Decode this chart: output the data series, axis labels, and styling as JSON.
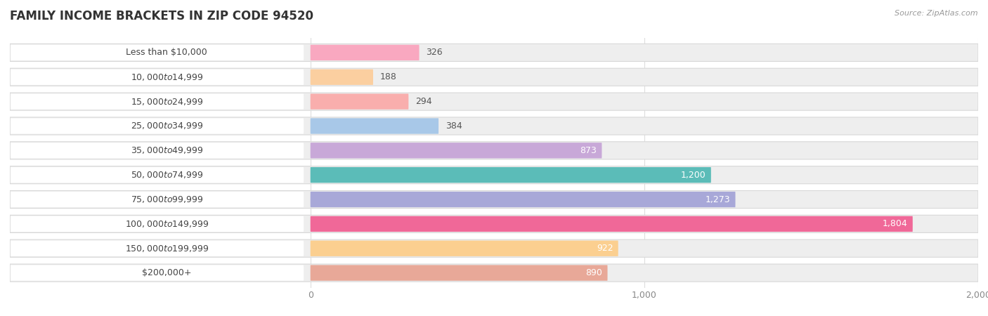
{
  "title": "FAMILY INCOME BRACKETS IN ZIP CODE 94520",
  "source": "Source: ZipAtlas.com",
  "categories": [
    "Less than $10,000",
    "$10,000 to $14,999",
    "$15,000 to $24,999",
    "$25,000 to $34,999",
    "$35,000 to $49,999",
    "$50,000 to $74,999",
    "$75,000 to $99,999",
    "$100,000 to $149,999",
    "$150,000 to $199,999",
    "$200,000+"
  ],
  "values": [
    326,
    188,
    294,
    384,
    873,
    1200,
    1273,
    1804,
    922,
    890
  ],
  "bar_colors": [
    "#F9A8C0",
    "#FBCFA0",
    "#F9AEAD",
    "#A8C8E8",
    "#C8A8D8",
    "#5BBCB8",
    "#A8A8D8",
    "#F06898",
    "#FBCF90",
    "#E8A898"
  ],
  "xlim": [
    0,
    2000
  ],
  "value_threshold_inside": 600,
  "label_color_dark": "#555555",
  "label_color_inside": "#ffffff",
  "bg_pill_color": "#eeeeee",
  "label_pill_color": "#ffffff",
  "grid_color": "#dddddd",
  "title_color": "#333333",
  "source_color": "#999999",
  "cat_label_color": "#444444",
  "tick_color": "#888888"
}
